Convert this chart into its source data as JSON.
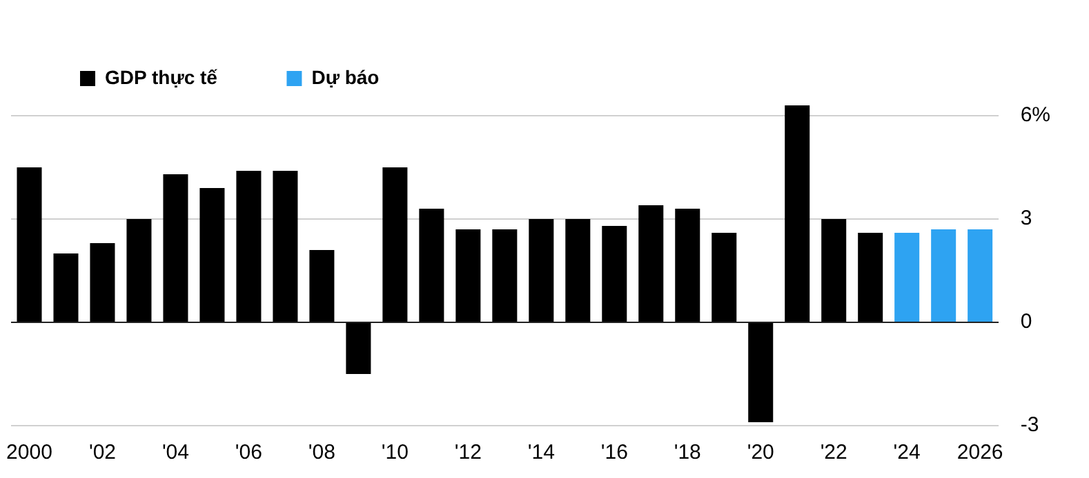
{
  "chart_data": {
    "type": "bar",
    "categories": [
      "2000",
      null,
      "'02",
      null,
      "'04",
      null,
      "'06",
      null,
      "'08",
      null,
      "'10",
      null,
      "'12",
      null,
      "'14",
      null,
      "'16",
      null,
      "'18",
      null,
      "'20",
      null,
      "'22",
      null,
      "'24",
      null,
      "2026"
    ],
    "series": [
      {
        "name": "GDP thực tế",
        "color": "#000000",
        "values": [
          4.5,
          2.0,
          2.3,
          3.0,
          4.3,
          3.9,
          4.4,
          4.4,
          2.1,
          -1.5,
          4.5,
          3.3,
          2.7,
          2.7,
          3.0,
          3.0,
          2.8,
          3.4,
          3.3,
          2.6,
          -2.9,
          6.3,
          3.0,
          2.6,
          null,
          null,
          null
        ]
      },
      {
        "name": "Dự báo",
        "color": "#2ea3f2",
        "values": [
          null,
          null,
          null,
          null,
          null,
          null,
          null,
          null,
          null,
          null,
          null,
          null,
          null,
          null,
          null,
          null,
          null,
          null,
          null,
          null,
          null,
          null,
          null,
          null,
          2.6,
          2.7,
          2.7
        ]
      }
    ],
    "ylim": [
      -3,
      6.4
    ],
    "yticks": [
      {
        "value": 6,
        "label": "6%"
      },
      3,
      0,
      -3
    ],
    "grid": "y",
    "legend": "top left"
  }
}
